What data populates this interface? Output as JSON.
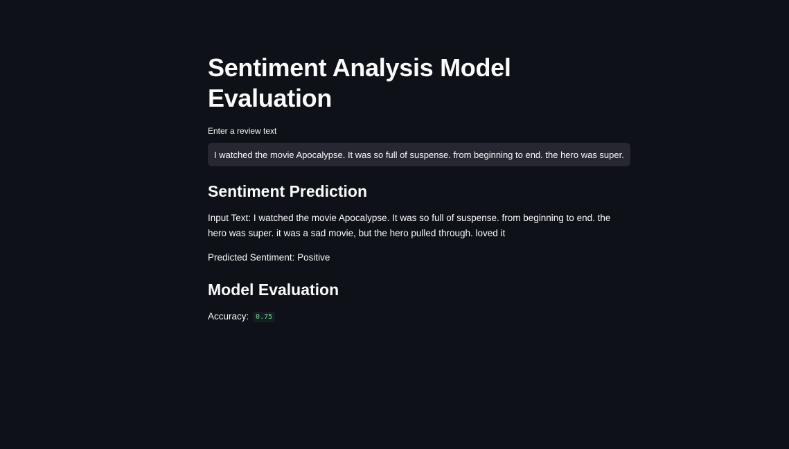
{
  "page": {
    "title": "Sentiment Analysis Model Evaluation"
  },
  "input": {
    "label": "Enter a review text",
    "value": "I watched the movie Apocalypse. It was so full of suspense. from beginning to end. the hero was super. it was a sad movie, but the hero pulled through. loved it"
  },
  "prediction": {
    "heading": "Sentiment Prediction",
    "input_text_label": "Input Text:",
    "input_text_value": "I watched the movie Apocalypse. It was so full of suspense. from beginning to end. the hero was super. it was a sad movie, but the hero pulled through. loved it",
    "predicted_label": "Predicted Sentiment:",
    "predicted_value": "Positive"
  },
  "evaluation": {
    "heading": "Model Evaluation",
    "accuracy_label": "Accuracy:",
    "accuracy_value": "0.75"
  },
  "colors": {
    "background": "#0e1117",
    "input_background": "#262730",
    "text": "#fafafa",
    "code_green": "#5ce488"
  }
}
